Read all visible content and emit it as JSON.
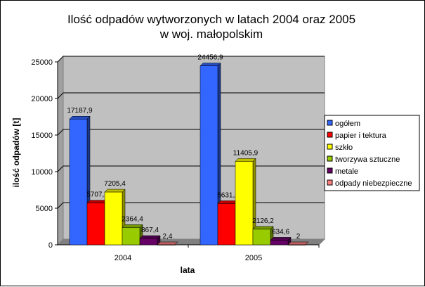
{
  "chart_data": {
    "type": "bar",
    "title_line1": "Ilość odpadów wytworzonych w latach 2004 oraz 2005",
    "title_line2": "w woj. małopolskim",
    "xlabel": "lata",
    "ylabel": "ilość odpadów [t]",
    "categories": [
      "2004",
      "2005"
    ],
    "ylim": [
      0,
      25000
    ],
    "yticks": [
      0,
      5000,
      10000,
      15000,
      20000,
      25000
    ],
    "grid": true,
    "legend_position": "right",
    "series": [
      {
        "name": "ogółem",
        "color": "#3366ff",
        "values": [
          17187.9,
          24456.9
        ],
        "labels": [
          "17187,9",
          "24456,9"
        ]
      },
      {
        "name": "papier i tektura",
        "color": "#ff0000",
        "values": [
          5707.2,
          5631.4
        ],
        "labels": [
          "5707,2",
          "5631,4"
        ]
      },
      {
        "name": "szkło",
        "color": "#ffff00",
        "values": [
          7205.4,
          11405.9
        ],
        "labels": [
          "7205,4",
          "11405,9"
        ]
      },
      {
        "name": "tworzywa sztuczne",
        "color": "#99cc00",
        "values": [
          2364.4,
          2126.2
        ],
        "labels": [
          "2364,4",
          "2126,2"
        ]
      },
      {
        "name": "metale",
        "color": "#660066",
        "values": [
          867.4,
          634.6
        ],
        "labels": [
          "867,4",
          "634,6"
        ]
      },
      {
        "name": "odpady niebezpieczne",
        "color": "#ff8080",
        "values": [
          2.4,
          2
        ],
        "labels": [
          "2,4",
          "2"
        ]
      }
    ],
    "colors": {
      "plot_background": "#c0c0c0",
      "gridline": "#000000"
    }
  }
}
